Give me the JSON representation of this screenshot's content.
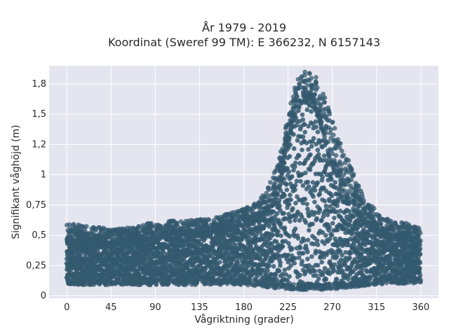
{
  "chart_data": {
    "type": "scatter",
    "title_line1": "År 1979 - 2019",
    "title_line2": "Koordinat (Sweref 99 TM): E 366232, N 6157143",
    "xlabel": "Vågriktning (grader)",
    "ylabel": "Signifikant våghöjd (m)",
    "xlim": [
      -18,
      378
    ],
    "ylim": [
      -0.02,
      1.9
    ],
    "x_ticks": [
      0,
      45,
      90,
      135,
      180,
      225,
      270,
      315,
      360
    ],
    "x_tick_labels": [
      "0",
      "45",
      "90",
      "135",
      "180",
      "225",
      "270",
      "315",
      "360"
    ],
    "y_ticks": [
      0,
      0.25,
      0.5,
      0.75,
      1,
      1.25,
      1.5,
      1.75
    ],
    "y_tick_labels": [
      "0",
      "0,25",
      "0,5",
      "0,75",
      "1",
      "1,2",
      "1,5",
      "1,8"
    ],
    "grid": true,
    "marker_color": "#34596f",
    "background_color": "#e5e5ef",
    "envelope": {
      "x": [
        0,
        10,
        20,
        30,
        45,
        60,
        75,
        90,
        105,
        120,
        135,
        150,
        165,
        180,
        195,
        205,
        215,
        225,
        232,
        240,
        248,
        255,
        262,
        270,
        280,
        290,
        300,
        315,
        330,
        345,
        360
      ],
      "y_min": [
        0.1,
        0.09,
        0.09,
        0.09,
        0.09,
        0.09,
        0.09,
        0.09,
        0.09,
        0.09,
        0.09,
        0.09,
        0.09,
        0.09,
        0.08,
        0.07,
        0.06,
        0.05,
        0.05,
        0.05,
        0.05,
        0.05,
        0.05,
        0.05,
        0.06,
        0.07,
        0.08,
        0.09,
        0.1,
        0.1,
        0.11
      ],
      "y_max": [
        0.6,
        0.6,
        0.58,
        0.57,
        0.55,
        0.56,
        0.58,
        0.62,
        0.62,
        0.62,
        0.63,
        0.65,
        0.68,
        0.72,
        0.78,
        0.9,
        1.1,
        1.5,
        1.75,
        1.85,
        1.87,
        1.8,
        1.65,
        1.45,
        1.25,
        1.05,
        0.85,
        0.7,
        0.62,
        0.6,
        0.58
      ],
      "core_min": [
        0.15,
        0.15,
        0.14,
        0.14,
        0.14,
        0.14,
        0.14,
        0.14,
        0.14,
        0.14,
        0.14,
        0.14,
        0.14,
        0.14,
        0.14,
        0.13,
        0.12,
        0.11,
        0.1,
        0.1,
        0.1,
        0.1,
        0.1,
        0.1,
        0.11,
        0.12,
        0.13,
        0.14,
        0.15,
        0.15,
        0.15
      ],
      "core_max": [
        0.45,
        0.45,
        0.43,
        0.42,
        0.42,
        0.43,
        0.45,
        0.46,
        0.47,
        0.48,
        0.5,
        0.52,
        0.55,
        0.58,
        0.62,
        0.7,
        0.85,
        1.25,
        1.5,
        1.6,
        1.62,
        1.5,
        1.3,
        1.05,
        0.85,
        0.72,
        0.6,
        0.52,
        0.47,
        0.46,
        0.45
      ]
    }
  }
}
